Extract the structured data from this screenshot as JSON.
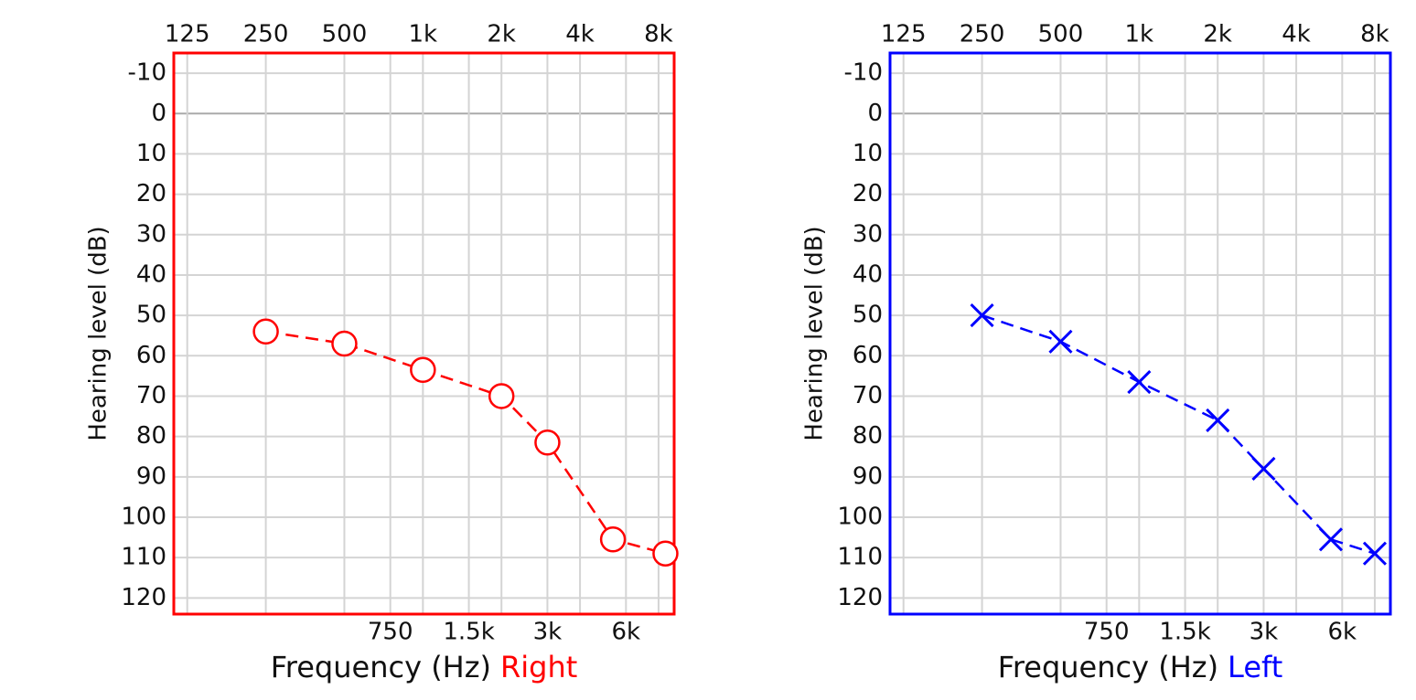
{
  "chart_data": [
    {
      "type": "line",
      "xlabel": "Frequency (Hz)",
      "ylabel": "Hearing level (dB)",
      "xscale": "log",
      "y_inverted": true,
      "grid": true,
      "xlim": [
        111,
        9180
      ],
      "ylim": [
        -15,
        124
      ],
      "xticks": [
        125,
        250,
        500,
        {
          "value": 1000,
          "label": "1k"
        },
        {
          "value": 2000,
          "label": "2k"
        },
        {
          "value": 4000,
          "label": "4k"
        },
        {
          "value": 8000,
          "label": "8k"
        }
      ],
      "xticks_bottom": [
        750,
        {
          "value": 1500,
          "label": "1.5k"
        },
        {
          "value": 3000,
          "label": "3k"
        },
        {
          "value": 6000,
          "label": "6k"
        }
      ],
      "yticks": [
        -10,
        0,
        10,
        20,
        30,
        40,
        50,
        60,
        70,
        80,
        90,
        100,
        110,
        120
      ],
      "series": [
        {
          "name": "Right",
          "color": "#ff0000",
          "marker": "circle",
          "x": [
            250,
            500,
            1000,
            2000,
            3000,
            5350,
            8500
          ],
          "values": [
            54,
            57,
            63.5,
            70,
            81.5,
            105.5,
            109
          ]
        }
      ]
    },
    {
      "type": "line",
      "xlabel": "Frequency (Hz)",
      "ylabel": "Hearing level (dB)",
      "xscale": "log",
      "y_inverted": true,
      "grid": true,
      "xlim": [
        111,
        9180
      ],
      "ylim": [
        -15,
        124
      ],
      "xticks": [
        125,
        250,
        500,
        {
          "value": 1000,
          "label": "1k"
        },
        {
          "value": 2000,
          "label": "2k"
        },
        {
          "value": 4000,
          "label": "4k"
        },
        {
          "value": 8000,
          "label": "8k"
        }
      ],
      "xticks_bottom": [
        750,
        {
          "value": 1500,
          "label": "1.5k"
        },
        {
          "value": 3000,
          "label": "3k"
        },
        {
          "value": 6000,
          "label": "6k"
        }
      ],
      "yticks": [
        -10,
        0,
        10,
        20,
        30,
        40,
        50,
        60,
        70,
        80,
        90,
        100,
        110,
        120
      ],
      "series": [
        {
          "name": "Left",
          "color": "#0000ff",
          "marker": "cross",
          "x": [
            250,
            500,
            1000,
            2000,
            3000,
            5430,
            8000
          ],
          "values": [
            50,
            56.5,
            66.5,
            76,
            88,
            105.5,
            109
          ]
        }
      ]
    }
  ]
}
